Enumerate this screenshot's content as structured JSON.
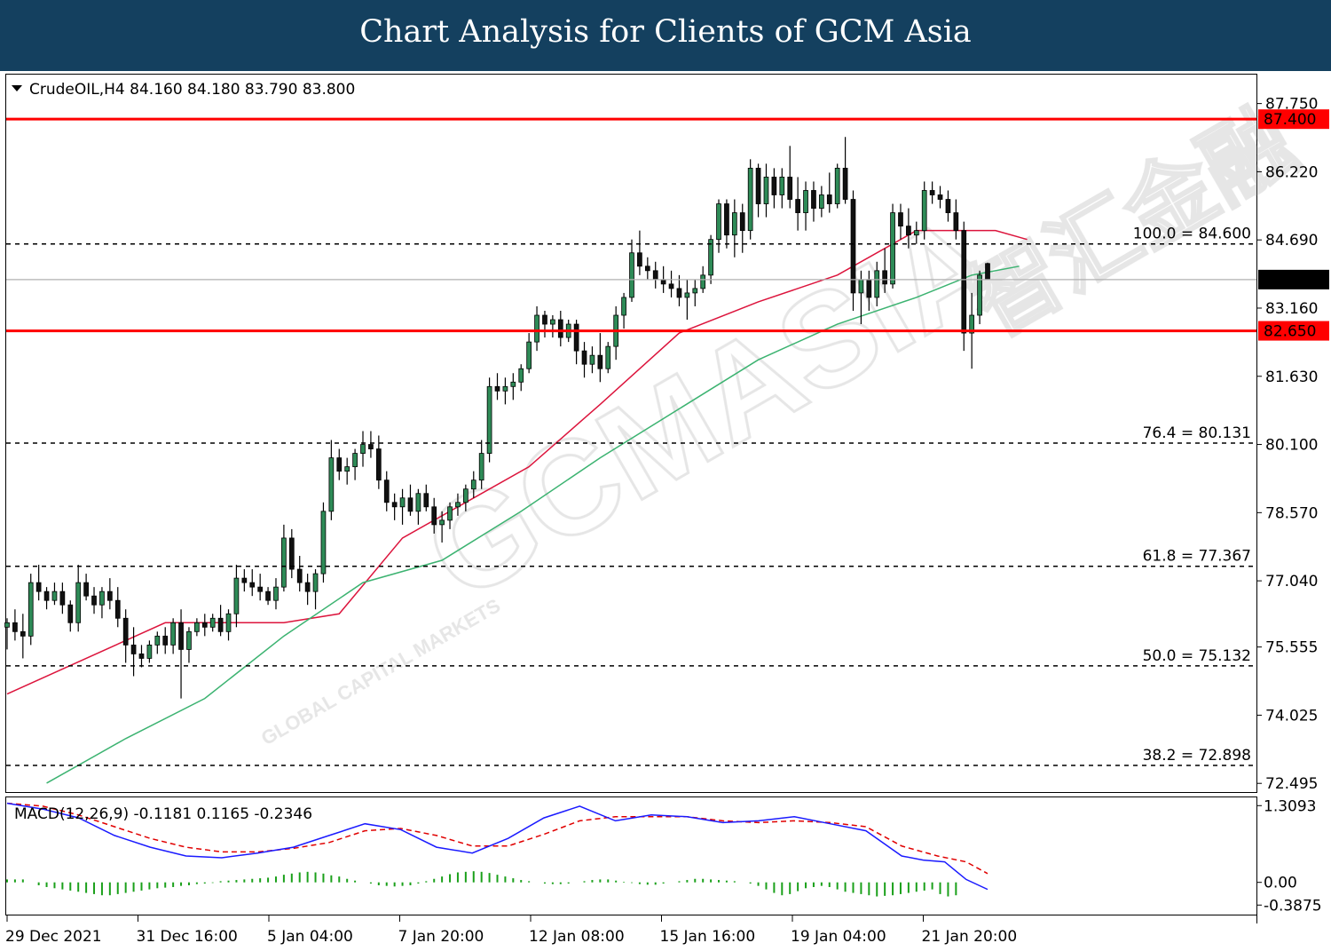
{
  "banner": {
    "title": "Chart Analysis for Clients of GCM Asia"
  },
  "chart_data": {
    "type": "candlestick",
    "symbol": "CrudeOIL,H4",
    "ohlc_header": [
      "84.160",
      "84.180",
      "83.790",
      "83.800"
    ],
    "price_axis": {
      "ticks": [
        "87.750",
        "86.220",
        "84.690",
        "83.160",
        "81.630",
        "80.100",
        "78.570",
        "77.040",
        "75.555",
        "74.025",
        "72.495"
      ],
      "tick_values": [
        87.75,
        86.22,
        84.69,
        83.16,
        81.63,
        80.1,
        78.57,
        77.04,
        75.555,
        74.025,
        72.495
      ],
      "range": [
        72.3,
        88.4
      ]
    },
    "x_axis": {
      "labels": [
        "29 Dec 2021",
        "31 Dec 16:00",
        "5 Jan 04:00",
        "7 Jan 20:00",
        "12 Jan 08:00",
        "15 Jan 16:00",
        "19 Jan 04:00",
        "21 Jan 20:00"
      ]
    },
    "horizontal_levels": [
      {
        "value": 87.4,
        "label": "87.400",
        "style": "solid",
        "color": "#ff0000"
      },
      {
        "value": 82.65,
        "label": "82.650",
        "style": "solid",
        "color": "#ff0000"
      }
    ],
    "current_price": {
      "value": 83.8,
      "label": "83.800"
    },
    "fibonacci": [
      {
        "value": 84.6,
        "label": "100.0 = 84.600"
      },
      {
        "value": 80.131,
        "label": "76.4 = 80.131"
      },
      {
        "value": 77.367,
        "label": "61.8 = 77.367"
      },
      {
        "value": 75.132,
        "label": "50.0 = 75.132"
      },
      {
        "value": 72.898,
        "label": "38.2 = 72.898"
      }
    ],
    "moving_averages": [
      {
        "color": "#dc143c",
        "points": [
          [
            0,
            74.5
          ],
          [
            10,
            75.3
          ],
          [
            20,
            76.1
          ],
          [
            28,
            76.1
          ],
          [
            35,
            76.1
          ],
          [
            42,
            76.3
          ],
          [
            50,
            78.0
          ],
          [
            58,
            78.8
          ],
          [
            66,
            79.6
          ],
          [
            75,
            81.0
          ],
          [
            85,
            82.6
          ],
          [
            95,
            83.3
          ],
          [
            105,
            83.9
          ],
          [
            115,
            84.9
          ],
          [
            125,
            84.9
          ],
          [
            129,
            84.7
          ]
        ]
      },
      {
        "color": "#3cb371",
        "points": [
          [
            5,
            72.5
          ],
          [
            15,
            73.5
          ],
          [
            25,
            74.4
          ],
          [
            35,
            75.8
          ],
          [
            45,
            77.0
          ],
          [
            55,
            77.5
          ],
          [
            65,
            78.6
          ],
          [
            75,
            79.8
          ],
          [
            85,
            80.9
          ],
          [
            95,
            82.0
          ],
          [
            105,
            82.8
          ],
          [
            115,
            83.4
          ],
          [
            122,
            83.9
          ],
          [
            128,
            84.1
          ]
        ]
      }
    ],
    "candles": [
      [
        76.0,
        76.2,
        75.5,
        76.1
      ],
      [
        76.1,
        76.4,
        75.7,
        75.9
      ],
      [
        75.9,
        76.3,
        75.3,
        75.8
      ],
      [
        75.8,
        77.2,
        75.6,
        77.0
      ],
      [
        77.0,
        77.4,
        76.6,
        76.8
      ],
      [
        76.8,
        76.9,
        76.4,
        76.6
      ],
      [
        76.6,
        77.0,
        76.5,
        76.8
      ],
      [
        76.8,
        77.0,
        76.3,
        76.5
      ],
      [
        76.5,
        76.6,
        75.9,
        76.1
      ],
      [
        76.1,
        77.4,
        75.9,
        77.0
      ],
      [
        77.0,
        77.2,
        76.6,
        76.7
      ],
      [
        76.7,
        76.9,
        76.3,
        76.5
      ],
      [
        76.5,
        76.9,
        76.2,
        76.8
      ],
      [
        76.8,
        77.1,
        76.4,
        76.6
      ],
      [
        76.6,
        76.9,
        76.0,
        76.2
      ],
      [
        76.2,
        76.4,
        75.2,
        75.6
      ],
      [
        75.6,
        76.0,
        74.9,
        75.4
      ],
      [
        75.4,
        75.6,
        75.1,
        75.3
      ],
      [
        75.3,
        75.7,
        75.2,
        75.6
      ],
      [
        75.6,
        75.9,
        75.4,
        75.8
      ],
      [
        75.8,
        76.0,
        75.4,
        75.6
      ],
      [
        75.6,
        76.2,
        75.4,
        76.1
      ],
      [
        76.1,
        76.4,
        74.4,
        75.5
      ],
      [
        75.5,
        76.0,
        75.2,
        75.9
      ],
      [
        75.9,
        76.2,
        75.8,
        76.1
      ],
      [
        76.1,
        76.3,
        75.8,
        76.0
      ],
      [
        76.0,
        76.3,
        75.9,
        76.2
      ],
      [
        76.2,
        76.5,
        75.8,
        75.9
      ],
      [
        75.9,
        76.4,
        75.7,
        76.3
      ],
      [
        76.3,
        77.4,
        76.0,
        77.1
      ],
      [
        77.1,
        77.3,
        76.8,
        77.0
      ],
      [
        77.0,
        77.3,
        76.7,
        76.9
      ],
      [
        76.9,
        77.2,
        76.6,
        76.8
      ],
      [
        76.8,
        76.9,
        76.5,
        76.6
      ],
      [
        76.6,
        77.1,
        76.4,
        76.9
      ],
      [
        76.9,
        78.3,
        76.8,
        78.0
      ],
      [
        78.0,
        78.2,
        77.1,
        77.3
      ],
      [
        77.3,
        77.6,
        76.8,
        77.0
      ],
      [
        77.0,
        77.2,
        76.5,
        76.8
      ],
      [
        76.8,
        77.3,
        76.4,
        77.2
      ],
      [
        77.2,
        78.8,
        77.0,
        78.6
      ],
      [
        78.6,
        80.2,
        78.4,
        79.8
      ],
      [
        79.8,
        80.0,
        79.3,
        79.5
      ],
      [
        79.5,
        79.8,
        79.2,
        79.6
      ],
      [
        79.6,
        80.0,
        79.3,
        79.9
      ],
      [
        79.9,
        80.4,
        79.6,
        80.1
      ],
      [
        80.1,
        80.4,
        79.8,
        80.0
      ],
      [
        80.0,
        80.3,
        79.1,
        79.3
      ],
      [
        79.3,
        79.5,
        78.6,
        78.8
      ],
      [
        78.8,
        79.0,
        78.4,
        78.7
      ],
      [
        78.7,
        79.1,
        78.3,
        78.9
      ],
      [
        78.9,
        79.2,
        78.5,
        78.6
      ],
      [
        78.6,
        79.1,
        78.3,
        79.0
      ],
      [
        79.0,
        79.2,
        78.6,
        78.7
      ],
      [
        78.7,
        78.9,
        78.1,
        78.3
      ],
      [
        78.3,
        78.6,
        77.9,
        78.4
      ],
      [
        78.4,
        78.8,
        78.2,
        78.7
      ],
      [
        78.7,
        79.0,
        78.5,
        78.8
      ],
      [
        78.8,
        79.2,
        78.6,
        79.1
      ],
      [
        79.1,
        79.5,
        78.9,
        79.3
      ],
      [
        79.3,
        80.2,
        79.1,
        79.9
      ],
      [
        79.9,
        81.6,
        79.7,
        81.4
      ],
      [
        81.4,
        81.7,
        81.1,
        81.3
      ],
      [
        81.3,
        81.6,
        81.0,
        81.4
      ],
      [
        81.4,
        81.7,
        81.1,
        81.5
      ],
      [
        81.5,
        81.9,
        81.3,
        81.8
      ],
      [
        81.8,
        82.6,
        81.7,
        82.4
      ],
      [
        82.4,
        83.2,
        82.2,
        83.0
      ],
      [
        83.0,
        83.1,
        82.5,
        82.8
      ],
      [
        82.8,
        83.0,
        82.5,
        82.9
      ],
      [
        82.9,
        83.1,
        82.3,
        82.5
      ],
      [
        82.5,
        82.9,
        82.4,
        82.8
      ],
      [
        82.8,
        82.9,
        81.9,
        82.2
      ],
      [
        82.2,
        82.4,
        81.6,
        81.9
      ],
      [
        81.9,
        82.3,
        81.7,
        82.1
      ],
      [
        82.1,
        82.6,
        81.5,
        81.8
      ],
      [
        81.8,
        82.4,
        81.7,
        82.3
      ],
      [
        82.3,
        83.2,
        82.0,
        83.0
      ],
      [
        83.0,
        83.5,
        82.7,
        83.4
      ],
      [
        83.4,
        84.7,
        83.3,
        84.4
      ],
      [
        84.4,
        84.9,
        83.9,
        84.1
      ],
      [
        84.1,
        84.3,
        83.8,
        84.0
      ],
      [
        84.0,
        84.2,
        83.6,
        83.8
      ],
      [
        83.8,
        84.1,
        83.5,
        83.7
      ],
      [
        83.7,
        84.0,
        83.4,
        83.6
      ],
      [
        83.6,
        83.9,
        83.2,
        83.4
      ],
      [
        83.4,
        83.8,
        82.9,
        83.5
      ],
      [
        83.5,
        83.8,
        83.2,
        83.6
      ],
      [
        83.6,
        84.1,
        83.5,
        83.9
      ],
      [
        83.9,
        84.8,
        83.7,
        84.7
      ],
      [
        84.7,
        85.6,
        84.4,
        85.5
      ],
      [
        85.5,
        85.6,
        84.5,
        84.8
      ],
      [
        84.8,
        85.6,
        84.3,
        85.3
      ],
      [
        85.3,
        85.5,
        84.4,
        84.9
      ],
      [
        84.9,
        86.5,
        84.7,
        86.3
      ],
      [
        86.3,
        86.4,
        85.2,
        85.5
      ],
      [
        85.5,
        86.4,
        85.2,
        86.1
      ],
      [
        86.1,
        86.3,
        85.4,
        85.7
      ],
      [
        85.7,
        86.3,
        85.4,
        86.1
      ],
      [
        86.1,
        86.8,
        85.4,
        85.6
      ],
      [
        85.6,
        86.1,
        84.9,
        85.3
      ],
      [
        85.3,
        86.0,
        84.9,
        85.8
      ],
      [
        85.8,
        86.0,
        85.1,
        85.4
      ],
      [
        85.4,
        85.9,
        85.2,
        85.7
      ],
      [
        85.7,
        86.2,
        85.3,
        85.5
      ],
      [
        85.5,
        86.4,
        85.4,
        86.3
      ],
      [
        86.3,
        87.0,
        85.5,
        85.6
      ],
      [
        85.6,
        85.8,
        83.1,
        83.5
      ],
      [
        83.5,
        84.0,
        82.8,
        83.8
      ],
      [
        83.8,
        84.0,
        83.1,
        83.4
      ],
      [
        83.4,
        84.2,
        83.2,
        84.0
      ],
      [
        84.0,
        84.5,
        83.5,
        83.7
      ],
      [
        83.7,
        85.5,
        83.6,
        85.3
      ],
      [
        85.3,
        85.5,
        84.7,
        85.0
      ],
      [
        85.0,
        85.4,
        84.5,
        84.8
      ],
      [
        84.8,
        85.1,
        84.6,
        84.9
      ],
      [
        84.9,
        86.0,
        84.7,
        85.8
      ],
      [
        85.8,
        86.0,
        85.5,
        85.7
      ],
      [
        85.7,
        85.9,
        85.4,
        85.6
      ],
      [
        85.6,
        85.8,
        85.1,
        85.3
      ],
      [
        85.3,
        85.6,
        84.7,
        84.9
      ],
      [
        84.9,
        85.1,
        82.2,
        82.6
      ],
      [
        82.6,
        83.5,
        81.8,
        83.0
      ],
      [
        83.0,
        84.0,
        82.8,
        83.9
      ],
      [
        84.16,
        84.18,
        83.79,
        83.8
      ]
    ],
    "macd": {
      "label": "MACD(12,26,9) -0.1181 0.1165 -0.2346",
      "ticks": [
        "1.3093",
        "0.00",
        "-0.3875"
      ],
      "tick_values": [
        1.3093,
        0.0,
        -0.3875
      ],
      "range": [
        -0.55,
        1.45
      ],
      "main_points": [
        [
          0,
          1.35
        ],
        [
          5,
          1.25
        ],
        [
          10,
          1.1
        ],
        [
          15,
          0.8
        ],
        [
          20,
          0.6
        ],
        [
          25,
          0.45
        ],
        [
          30,
          0.42
        ],
        [
          35,
          0.5
        ],
        [
          40,
          0.6
        ],
        [
          45,
          0.8
        ],
        [
          50,
          1.0
        ],
        [
          55,
          0.9
        ],
        [
          60,
          0.6
        ],
        [
          65,
          0.5
        ],
        [
          70,
          0.75
        ],
        [
          75,
          1.1
        ],
        [
          80,
          1.3
        ],
        [
          85,
          1.05
        ],
        [
          90,
          1.15
        ],
        [
          95,
          1.12
        ],
        [
          100,
          1.02
        ],
        [
          105,
          1.05
        ],
        [
          110,
          1.12
        ],
        [
          115,
          1.0
        ],
        [
          120,
          0.88
        ],
        [
          125,
          0.45
        ],
        [
          128,
          0.38
        ],
        [
          131,
          0.35
        ],
        [
          134,
          0.05
        ],
        [
          137,
          -0.12
        ]
      ],
      "signal_points": [
        [
          0,
          1.35
        ],
        [
          5,
          1.3
        ],
        [
          10,
          1.15
        ],
        [
          15,
          0.95
        ],
        [
          20,
          0.75
        ],
        [
          25,
          0.6
        ],
        [
          30,
          0.52
        ],
        [
          35,
          0.52
        ],
        [
          40,
          0.58
        ],
        [
          45,
          0.68
        ],
        [
          50,
          0.88
        ],
        [
          55,
          0.92
        ],
        [
          60,
          0.8
        ],
        [
          65,
          0.62
        ],
        [
          70,
          0.62
        ],
        [
          75,
          0.82
        ],
        [
          80,
          1.05
        ],
        [
          85,
          1.12
        ],
        [
          90,
          1.12
        ],
        [
          95,
          1.12
        ],
        [
          100,
          1.05
        ],
        [
          105,
          1.02
        ],
        [
          110,
          1.05
        ],
        [
          115,
          1.02
        ],
        [
          120,
          0.95
        ],
        [
          125,
          0.62
        ],
        [
          130,
          0.45
        ],
        [
          134,
          0.35
        ],
        [
          137,
          0.15
        ]
      ],
      "histogram": [
        0.05,
        0.05,
        0.05,
        0.0,
        -0.05,
        -0.08,
        -0.1,
        -0.12,
        -0.14,
        -0.16,
        -0.18,
        -0.2,
        -0.22,
        -0.22,
        -0.2,
        -0.18,
        -0.16,
        -0.14,
        -0.12,
        -0.1,
        -0.09,
        -0.08,
        -0.06,
        -0.05,
        -0.03,
        -0.02,
        -0.01,
        0.02,
        0.03,
        0.04,
        0.05,
        0.06,
        0.07,
        0.08,
        0.1,
        0.13,
        0.15,
        0.17,
        0.18,
        0.17,
        0.15,
        0.12,
        0.1,
        0.06,
        0.03,
        0.0,
        -0.02,
        -0.05,
        -0.06,
        -0.07,
        -0.06,
        -0.05,
        -0.02,
        0.02,
        0.06,
        0.1,
        0.14,
        0.17,
        0.18,
        0.19,
        0.18,
        0.16,
        0.13,
        0.1,
        0.07,
        0.04,
        0.02,
        0.0,
        -0.02,
        -0.03,
        -0.03,
        -0.02,
        0.0,
        0.02,
        0.04,
        0.05,
        0.05,
        0.03,
        0.01,
        -0.01,
        -0.03,
        -0.04,
        -0.04,
        -0.02,
        0.0,
        0.02,
        0.04,
        0.06,
        0.06,
        0.05,
        0.04,
        0.03,
        0.02,
        0.0,
        -0.02,
        -0.06,
        -0.12,
        -0.18,
        -0.22,
        -0.2,
        -0.15,
        -0.1,
        -0.08,
        -0.06,
        -0.08,
        -0.12,
        -0.16,
        -0.18,
        -0.2,
        -0.22,
        -0.24,
        -0.23,
        -0.22,
        -0.2,
        -0.18,
        -0.16,
        -0.14,
        -0.12,
        -0.2,
        -0.24,
        -0.22
      ]
    }
  },
  "watermark": {
    "brand": "GCMASIA",
    "chinese": "智汇金融",
    "tagline": "GLOBAL CAPITAL MARKETS"
  }
}
